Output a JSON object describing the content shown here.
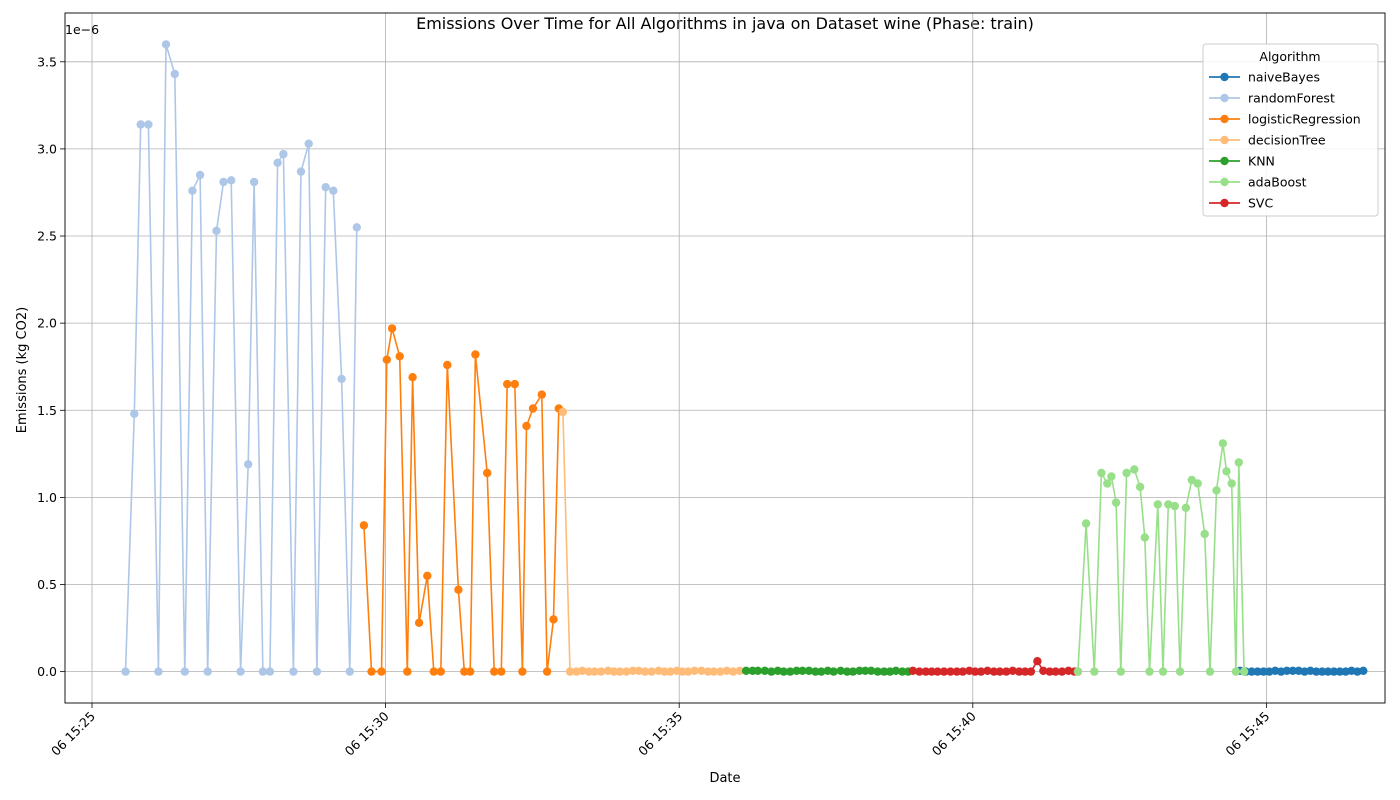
{
  "chart_data": {
    "type": "line",
    "title": "Emissions Over Time for All Algorithms in java on Dataset wine (Phase: train)",
    "xlabel": "Date",
    "ylabel": "Emissions (kg CO2)",
    "y_offset_label": "1e−6",
    "y_scale": 1e-06,
    "grid": true,
    "legend_position": "top-right",
    "legend_title": "Algorithm",
    "x_unit": "minutes after 06 15:25",
    "xlim": [
      -0.46,
      22.02
    ],
    "ylim": [
      -0.18,
      3.78
    ],
    "x_ticks": [
      {
        "value": 0,
        "label": "06 15:25"
      },
      {
        "value": 5,
        "label": "06 15:30"
      },
      {
        "value": 10,
        "label": "06 15:35"
      },
      {
        "value": 15,
        "label": "06 15:40"
      },
      {
        "value": 20,
        "label": "06 15:45"
      }
    ],
    "y_ticks": [
      {
        "value": 0,
        "label": "0.0"
      },
      {
        "value": 0.5,
        "label": "0.5"
      },
      {
        "value": 1.0,
        "label": "1.0"
      },
      {
        "value": 1.5,
        "label": "1.5"
      },
      {
        "value": 2.0,
        "label": "2.0"
      },
      {
        "value": 2.5,
        "label": "2.5"
      },
      {
        "value": 3.0,
        "label": "3.0"
      },
      {
        "value": 3.5,
        "label": "3.5"
      }
    ],
    "series": [
      {
        "name": "naiveBayes",
        "color": "#1f77b4",
        "x": [
          19.55,
          19.65,
          19.75,
          19.85,
          19.95,
          20.05,
          20.15,
          20.25,
          20.35,
          20.45,
          20.55,
          20.65,
          20.75,
          20.85,
          20.95,
          21.05,
          21.15,
          21.25,
          21.35,
          21.45,
          21.55,
          21.65
        ],
        "y": [
          0.005,
          0,
          0,
          0,
          0,
          0,
          0.005,
          0,
          0.005,
          0.005,
          0.005,
          0,
          0.005,
          0,
          0,
          0,
          0,
          0,
          0,
          0.005,
          0,
          0.005
        ]
      },
      {
        "name": "randomForest",
        "color": "#aec7e8",
        "x": [
          0.57,
          0.72,
          0.83,
          0.96,
          1.13,
          1.26,
          1.41,
          1.58,
          1.71,
          1.84,
          1.97,
          2.12,
          2.24,
          2.37,
          2.53,
          2.66,
          2.76,
          2.91,
          3.03,
          3.16,
          3.26,
          3.43,
          3.56,
          3.69,
          3.83,
          3.98,
          4.11,
          4.25,
          4.39,
          4.51
        ],
        "y": [
          0,
          1.48,
          3.14,
          3.14,
          0,
          3.6,
          3.43,
          0,
          2.76,
          2.85,
          0,
          2.53,
          2.81,
          2.82,
          0,
          1.19,
          2.81,
          0,
          0,
          2.92,
          2.97,
          0,
          2.87,
          3.03,
          0,
          2.78,
          2.76,
          1.68,
          0,
          2.55
        ]
      },
      {
        "name": "logisticRegression",
        "color": "#ff7f0e",
        "x": [
          4.63,
          4.76,
          4.93,
          5.02,
          5.11,
          5.24,
          5.37,
          5.46,
          5.57,
          5.71,
          5.82,
          5.94,
          6.05,
          6.24,
          6.34,
          6.44,
          6.53,
          6.73,
          6.85,
          6.97,
          7.07,
          7.2,
          7.33,
          7.4,
          7.51,
          7.66,
          7.75,
          7.86,
          7.95
        ],
        "y": [
          0.84,
          0,
          0,
          1.79,
          1.97,
          1.81,
          0,
          1.69,
          0.28,
          0.55,
          0,
          0,
          1.76,
          0.47,
          0,
          0,
          1.82,
          1.14,
          0,
          0,
          1.65,
          1.65,
          0,
          1.41,
          1.51,
          1.59,
          0,
          0.3,
          1.51
        ]
      },
      {
        "name": "decisionTree",
        "color": "#ffbb78",
        "x": [
          8.02,
          8.14,
          8.25,
          8.35,
          8.46,
          8.56,
          8.67,
          8.79,
          8.89,
          8.99,
          9.1,
          9.21,
          9.31,
          9.42,
          9.53,
          9.65,
          9.75,
          9.85,
          9.96,
          10.05,
          10.15,
          10.26,
          10.38,
          10.49,
          10.59,
          10.7,
          10.81,
          10.92,
          11.03
        ],
        "y": [
          1.49,
          0,
          0,
          0.005,
          0,
          0,
          0,
          0.005,
          0,
          0,
          0,
          0.005,
          0.005,
          0,
          0,
          0.005,
          0,
          0,
          0.005,
          0,
          0,
          0.005,
          0.005,
          0,
          0,
          0,
          0.005,
          0,
          0.005
        ]
      },
      {
        "name": "KNN",
        "color": "#2ca02c",
        "x": [
          11.14,
          11.25,
          11.34,
          11.46,
          11.57,
          11.68,
          11.78,
          11.89,
          12.0,
          12.1,
          12.21,
          12.32,
          12.42,
          12.53,
          12.63,
          12.75,
          12.86,
          12.96,
          13.07,
          13.17,
          13.27,
          13.38,
          13.49,
          13.59,
          13.69,
          13.8,
          13.9
        ],
        "y": [
          0.005,
          0.005,
          0.005,
          0.005,
          0,
          0.005,
          0,
          0,
          0.005,
          0.005,
          0.005,
          0,
          0,
          0.005,
          0,
          0.005,
          0,
          0,
          0.005,
          0.005,
          0.005,
          0,
          0,
          0,
          0.005,
          0,
          0
        ]
      },
      {
        "name": "SVC",
        "color": "#d62728",
        "x": [
          13.98,
          14.09,
          14.2,
          14.3,
          14.4,
          14.51,
          14.62,
          14.73,
          14.83,
          14.94,
          15.04,
          15.14,
          15.25,
          15.36,
          15.46,
          15.57,
          15.68,
          15.79,
          15.89,
          15.99,
          16.1,
          16.2,
          16.31,
          16.41,
          16.52,
          16.63,
          16.73,
          16.79
        ],
        "y": [
          0.005,
          0,
          0,
          0,
          0,
          0,
          0,
          0,
          0,
          0.005,
          0,
          0,
          0.005,
          0,
          0,
          0,
          0.005,
          0,
          0,
          0,
          0.06,
          0.005,
          0,
          0,
          0,
          0.005,
          0,
          0
        ]
      },
      {
        "name": "adaBoost",
        "color": "#98df8a",
        "x": [
          16.79,
          16.93,
          17.07,
          17.19,
          17.29,
          17.36,
          17.44,
          17.52,
          17.62,
          17.75,
          17.85,
          17.93,
          18.01,
          18.15,
          18.24,
          18.33,
          18.44,
          18.53,
          18.63,
          18.73,
          18.83,
          18.95,
          19.04,
          19.15,
          19.26,
          19.32,
          19.41,
          19.48,
          19.53,
          19.62
        ],
        "y": [
          0,
          0.85,
          0,
          1.14,
          1.08,
          1.12,
          0.97,
          0,
          1.14,
          1.16,
          1.06,
          0.77,
          0,
          0.96,
          0,
          0.96,
          0.95,
          0,
          0.94,
          1.1,
          1.08,
          0.79,
          0,
          1.04,
          1.31,
          1.15,
          1.08,
          0,
          1.2,
          0
        ]
      }
    ],
    "legend_order": [
      "naiveBayes",
      "randomForest",
      "logisticRegression",
      "decisionTree",
      "KNN",
      "adaBoost",
      "SVC"
    ]
  }
}
